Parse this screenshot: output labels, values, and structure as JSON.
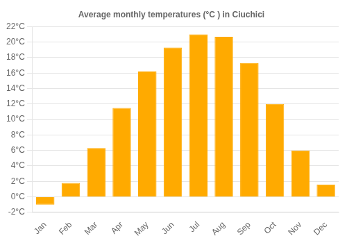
{
  "chart_data": {
    "type": "bar",
    "title": "Average monthly temperatures (°C ) in Ciuchici",
    "categories": [
      "Jan",
      "Feb",
      "Mar",
      "Apr",
      "May",
      "Jun",
      "Jul",
      "Aug",
      "Sep",
      "Oct",
      "Nov",
      "Dec"
    ],
    "values": [
      -1.0,
      1.8,
      6.3,
      11.5,
      16.2,
      19.3,
      21.0,
      20.7,
      17.3,
      12.0,
      6.0,
      1.6
    ],
    "color": "#FFAA00",
    "ylim": [
      -2,
      22
    ],
    "yticks": [
      {
        "value": -2,
        "label": "-2°C"
      },
      {
        "value": 0,
        "label": "0°C"
      },
      {
        "value": 2,
        "label": "2°C"
      },
      {
        "value": 4,
        "label": "4°C"
      },
      {
        "value": 6,
        "label": "6°C"
      },
      {
        "value": 8,
        "label": "8°C"
      },
      {
        "value": 10,
        "label": "10°C"
      },
      {
        "value": 12,
        "label": "12°C"
      },
      {
        "value": 14,
        "label": "14°C"
      },
      {
        "value": 16,
        "label": "16°C"
      },
      {
        "value": 18,
        "label": "18°C"
      },
      {
        "value": 20,
        "label": "20°C"
      },
      {
        "value": 22,
        "label": "22°C"
      }
    ],
    "grid": true
  }
}
